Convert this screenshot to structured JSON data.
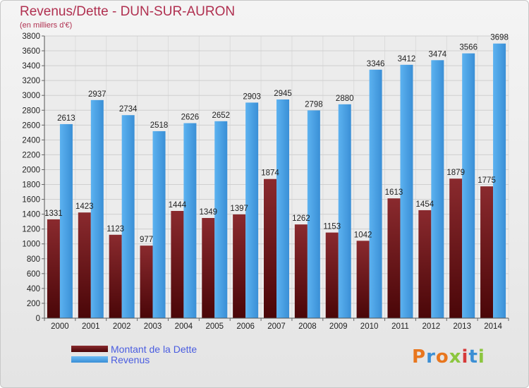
{
  "header": {
    "title": "Revenus/Dette - DUN-SUR-AURON",
    "subtitle": "(en milliers d'€)"
  },
  "legend": {
    "dette_label": "Montant de la Dette",
    "revenus_label": "Revenus"
  },
  "logo": {
    "text": "Proxiti",
    "letter_colors": [
      "#e8761e",
      "#3c8fd4",
      "#e8761e",
      "#8cc63f",
      "#d63a3a",
      "#3c8fd4",
      "#8cc63f"
    ]
  },
  "colors": {
    "dette": "#6e1a1e",
    "revenus": "#4aa3e6",
    "title": "#b03050",
    "legend_text": "#4a5de0"
  },
  "chart_data": {
    "type": "bar",
    "categories": [
      "2000",
      "2001",
      "2002",
      "2003",
      "2004",
      "2005",
      "2006",
      "2007",
      "2008",
      "2009",
      "2010",
      "2011",
      "2012",
      "2013",
      "2014"
    ],
    "series": [
      {
        "name": "Montant de la Dette",
        "values": [
          1331,
          1423,
          1123,
          977,
          1444,
          1349,
          1397,
          1874,
          1262,
          1153,
          1042,
          1613,
          1454,
          1879,
          1775
        ],
        "labels": [
          "1331",
          "1423",
          "1123",
          "977",
          "1444",
          "1349",
          "1397",
          "1874",
          "1262",
          "1153",
          "1042",
          "1613",
          "1454",
          "1879",
          "1775"
        ]
      },
      {
        "name": "Revenus",
        "values": [
          2613,
          2937,
          2734,
          2518,
          2626,
          2652,
          2903,
          2945,
          2798,
          2880,
          3346,
          3412,
          3474,
          3566,
          3698
        ],
        "labels": [
          "2613",
          "2937",
          "2734",
          "2518",
          "2626",
          "2652",
          "2903",
          "2945",
          "2798",
          "2880",
          "3346",
          "3412",
          "3474",
          "3566",
          "3698"
        ]
      }
    ],
    "ylim": [
      0,
      3800
    ],
    "yticks": [
      "0",
      "200",
      "400",
      "600",
      "800",
      "1000",
      "1200",
      "1400",
      "1600",
      "1800",
      "2000",
      "2200",
      "2400",
      "2600",
      "2800",
      "3000",
      "3200",
      "3400",
      "3600",
      "3800"
    ],
    "grid": true,
    "legend_position": "bottom-left"
  }
}
